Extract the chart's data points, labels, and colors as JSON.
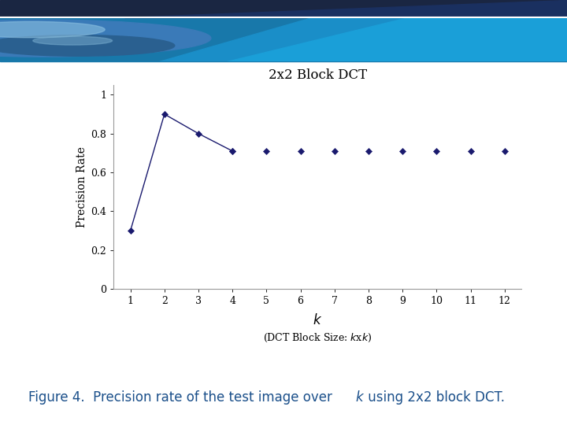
{
  "title": "2x2 Block DCT",
  "ylabel": "Precision Rate",
  "x_values": [
    1,
    2,
    3,
    4,
    5,
    6,
    7,
    8,
    9,
    10,
    11,
    12
  ],
  "y_values": [
    0.3,
    0.9,
    0.8,
    0.71,
    0.71,
    0.71,
    0.71,
    0.71,
    0.71,
    0.71,
    0.71,
    0.71
  ],
  "line_color": "#1a1a6e",
  "marker_style": "D",
  "marker_size": 4,
  "ylim": [
    0,
    1.05
  ],
  "xlim": [
    0.5,
    12.5
  ],
  "yticks": [
    0,
    0.2,
    0.4,
    0.6,
    0.8,
    1
  ],
  "xticks": [
    1,
    2,
    3,
    4,
    5,
    6,
    7,
    8,
    9,
    10,
    11,
    12
  ],
  "bg_color": "#ffffff",
  "caption_color": "#1a4f8a",
  "header_navy": "#1a2642",
  "header_blue1": "#1a6a9a",
  "header_blue2": "#1a88bb",
  "header_blue3": "#2090c0"
}
